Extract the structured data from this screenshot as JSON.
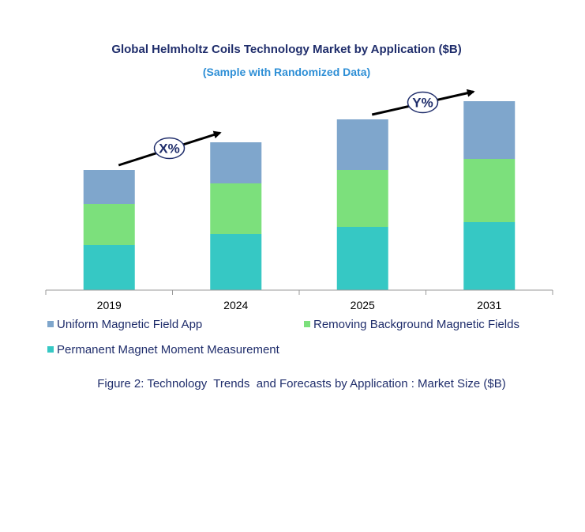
{
  "chart_data": {
    "type": "bar",
    "stacked": true,
    "title": "Global Helmholtz Coils Technology Market by Application ($B)",
    "subtitle": "(Sample with Randomized Data)",
    "categories": [
      "2019",
      "2024",
      "2025",
      "2031"
    ],
    "series": [
      {
        "name": "Permanent Magnet Moment Measurement",
        "color": "#36c8c4",
        "values": [
          57,
          71,
          80,
          86
        ]
      },
      {
        "name": "Removing Background Magnetic Fields",
        "color": "#7ce07c",
        "values": [
          52,
          64,
          72,
          80
        ]
      },
      {
        "name": "Uniform Magnetic Field App",
        "color": "#7fa6cc",
        "values": [
          43,
          52,
          64,
          73
        ]
      }
    ],
    "legend": {
      "placement": "bottom",
      "order": [
        "Uniform Magnetic Field App",
        "Removing Background Magnetic Fields",
        "Permanent Magnet Moment Measurement"
      ]
    },
    "annotations": [
      {
        "label": "X%",
        "from_category": "2019",
        "to_category": "2024"
      },
      {
        "label": "Y%",
        "from_category": "2025",
        "to_category": "2031"
      }
    ],
    "caption": "Figure 2: Technology  Trends  and Forecasts by Application : Market Size ($B)",
    "grid": false,
    "y_axis_visible": false
  }
}
